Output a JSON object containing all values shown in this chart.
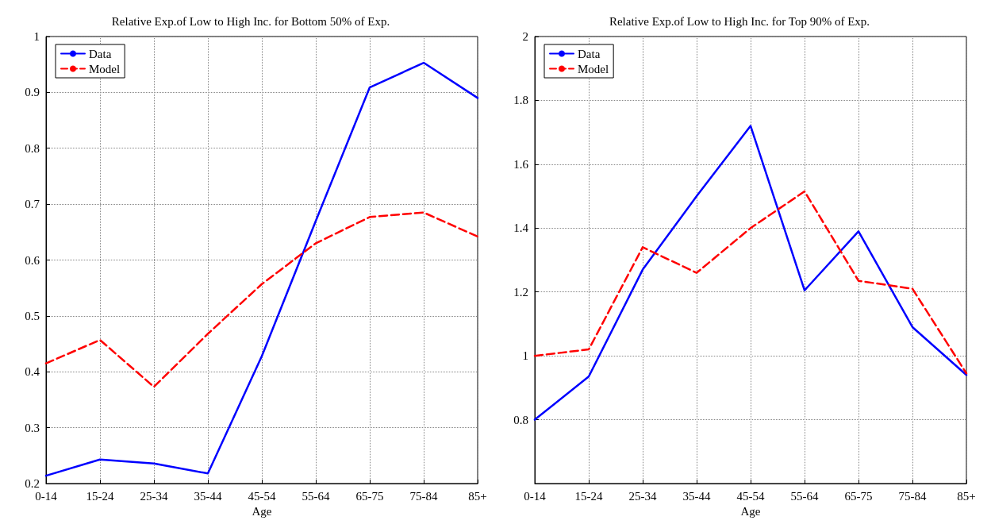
{
  "chart_data": [
    {
      "type": "line",
      "title": "Relative Exp.of Low to High Inc. for Bottom 50% of Exp.",
      "xlabel": "Age",
      "categories": [
        "0-14",
        "15-24",
        "25-34",
        "35-44",
        "45-54",
        "55-64",
        "65-75",
        "75-84",
        "85+"
      ],
      "ylim": [
        0.2,
        1
      ],
      "yticks": [
        0.2,
        0.3,
        0.4,
        0.5,
        0.6,
        0.7,
        0.8,
        0.9,
        1
      ],
      "grid": true,
      "legend": "top left",
      "marker": "none",
      "series": [
        {
          "name": "Data",
          "color": "#0000ff",
          "line_style": "solid",
          "values": [
            0.214,
            0.243,
            0.236,
            0.218,
            0.428,
            0.67,
            0.909,
            0.953,
            0.89
          ]
        },
        {
          "name": "Model",
          "color": "#ff0000",
          "line_style": "dashed",
          "values": [
            0.415,
            0.457,
            0.373,
            0.468,
            0.557,
            0.63,
            0.677,
            0.685,
            0.642
          ]
        }
      ]
    },
    {
      "type": "line",
      "title": "Relative Exp.of Low to High Inc. for Top 90% of Exp.",
      "xlabel": "Age",
      "categories": [
        "0-14",
        "15-24",
        "25-34",
        "35-44",
        "45-54",
        "55-64",
        "65-75",
        "75-84",
        "85+"
      ],
      "ylim": [
        0.6,
        2
      ],
      "yticks": [
        0.8,
        1,
        1.2,
        1.4,
        1.6,
        1.8,
        2
      ],
      "grid": true,
      "legend": "top left",
      "marker": "none",
      "series": [
        {
          "name": "Data",
          "color": "#0000ff",
          "line_style": "solid",
          "values": [
            0.8,
            0.935,
            1.27,
            1.5,
            1.72,
            1.205,
            1.39,
            1.09,
            0.94
          ]
        },
        {
          "name": "Model",
          "color": "#ff0000",
          "line_style": "dashed",
          "values": [
            1.0,
            1.02,
            1.34,
            1.26,
            1.4,
            1.515,
            1.235,
            1.21,
            0.945
          ]
        }
      ]
    }
  ]
}
